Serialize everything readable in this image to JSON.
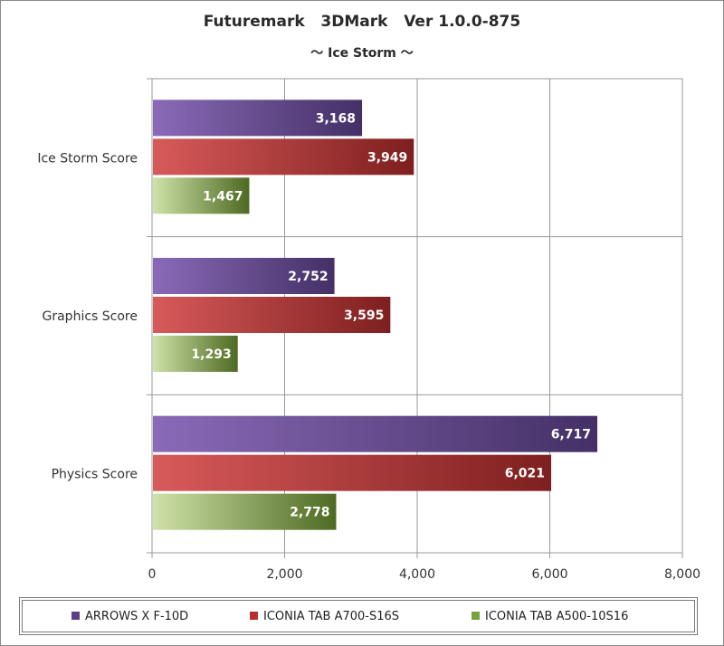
{
  "chart_data": {
    "type": "bar",
    "orientation": "horizontal",
    "title": "Futuremark   3DMark   Ver 1.0.0-875",
    "subtitle": "～ Ice Storm ～",
    "categories": [
      "Ice Storm Score",
      "Graphics Score",
      "Physics Score"
    ],
    "series": [
      {
        "name": "ARROWS X F-10D",
        "values": [
          3168,
          2752,
          6717
        ],
        "labels": [
          "3,168",
          "2,752",
          "6,717"
        ],
        "color": "#5a3f86"
      },
      {
        "name": "ICONIA TAB A700-S16S",
        "values": [
          3949,
          3595,
          6021
        ],
        "labels": [
          "3,949",
          "3,595",
          "6,021"
        ],
        "color": "#b73030"
      },
      {
        "name": "ICONIA TAB A500-10S16",
        "values": [
          1467,
          1293,
          2778
        ],
        "labels": [
          "1,467",
          "1,293",
          "2,778"
        ],
        "color": "#76a23c"
      }
    ],
    "xlim": [
      0,
      8000
    ],
    "x_ticks": [
      0,
      2000,
      4000,
      6000,
      8000
    ],
    "x_tick_labels": [
      "0",
      "2,000",
      "4,000",
      "6,000",
      "8,000"
    ],
    "grid": true,
    "legend_position": "bottom"
  }
}
